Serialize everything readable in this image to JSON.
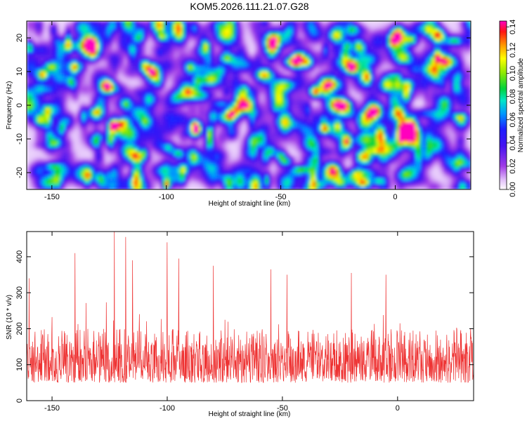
{
  "title": "KOM5.2026.111.21.07.G28",
  "chart_data": [
    {
      "type": "heatmap",
      "title": "KOM5.2026.111.21.07.G28",
      "xlabel": "Height of straight line (km)",
      "ylabel": "Frequency (Hz)",
      "xlim": [
        -161,
        33
      ],
      "ylim": [
        -25,
        25
      ],
      "x_ticks": [
        -150,
        -100,
        -50,
        0
      ],
      "x_tick_labels": [
        "-150",
        "-100",
        "-50",
        "0"
      ],
      "y_ticks": [
        -20,
        -10,
        0,
        10,
        20
      ],
      "y_tick_labels": [
        "-20",
        "-10",
        "0",
        "10",
        "20"
      ],
      "colorbar": {
        "label": "Normalized spectral amplitude",
        "range": [
          0,
          0.145
        ],
        "ticks": [
          0,
          0.02,
          0.04,
          0.06,
          0.08,
          0.1,
          0.12,
          0.14
        ],
        "tick_labels": [
          "0.00",
          "0.02",
          "0.04",
          "0.06",
          "0.08",
          "0.10",
          "0.12",
          "0.14"
        ]
      },
      "peaks": [
        {
          "x": -123,
          "y": -6,
          "value": 0.14
        },
        {
          "x": -31,
          "y": -7,
          "value": 0.13
        },
        {
          "x": -35,
          "y": 4,
          "value": 0.13
        },
        {
          "x": -154,
          "y": 9,
          "value": 0.12
        },
        {
          "x": -126,
          "y": 6,
          "value": 0.1
        },
        {
          "x": -19,
          "y": 11,
          "value": 0.1
        },
        {
          "x": -50,
          "y": -15,
          "value": 0.09
        },
        {
          "x": -72,
          "y": -3,
          "value": 0.09
        }
      ]
    },
    {
      "type": "line",
      "xlabel": "Height of straight line (km)",
      "ylabel": "SNR (10 * v/v)",
      "xlim": [
        -161,
        33
      ],
      "ylim": [
        0,
        470
      ],
      "x_ticks": [
        -150,
        -100,
        -50,
        0
      ],
      "x_tick_labels": [
        "-150",
        "-100",
        "-50",
        "0"
      ],
      "y_ticks": [
        0,
        100,
        200,
        300,
        400
      ],
      "y_tick_labels": [
        "0",
        "100",
        "200",
        "300",
        "400"
      ],
      "series": [
        {
          "name": "SNR",
          "color": "#ee3333",
          "typical_range": [
            50,
            200
          ],
          "peaks": [
            [
              -123,
              470
            ],
            [
              -118,
              455
            ],
            [
              -100,
              440
            ],
            [
              -140,
              410
            ],
            [
              -95,
              395
            ],
            [
              -115,
              390
            ],
            [
              -80,
              375
            ],
            [
              -55,
              365
            ],
            [
              -20,
              355
            ],
            [
              -48,
              350
            ],
            [
              -5,
              350
            ],
            [
              -160,
              340
            ]
          ]
        }
      ]
    }
  ]
}
